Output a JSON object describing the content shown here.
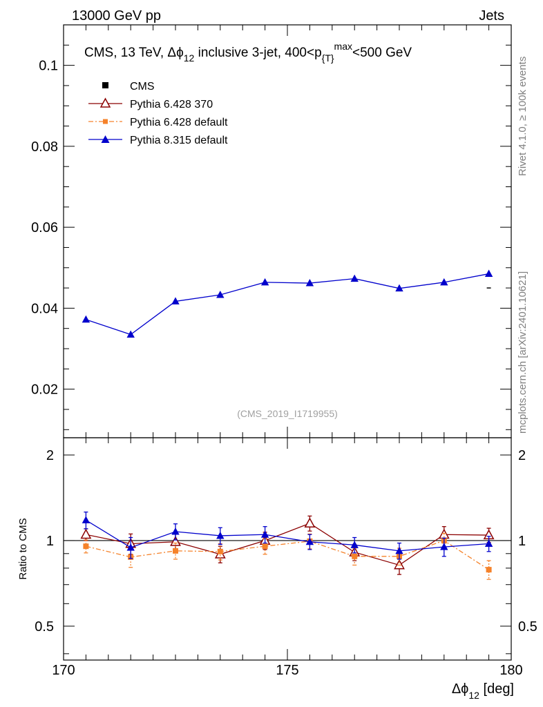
{
  "header": {
    "left": "13000 GeV pp",
    "right": "Jets"
  },
  "title": {
    "prefix": "CMS, 13 TeV, ",
    "symbol": "Δϕ",
    "symbol_sub": "12",
    "middle": " inclusive 3-jet, 400<p",
    "p_sub": "{T}",
    "p_sup": "max",
    "suffix": "<500 GeV"
  },
  "side_labels": {
    "rivet": "Rivet 4.1.0, ≥ 100k events",
    "mcplots": "mcplots.cern.ch [arXiv:2401.10621]"
  },
  "analysis_id": "(CMS_2019_I1719955)",
  "colors": {
    "cms": "#000000",
    "pythia6_370": "#8b0000",
    "pythia6_default": "#f5822a",
    "pythia8": "#0000cc"
  },
  "chart_data": {
    "type": "line",
    "main": {
      "ylim": [
        0.008,
        0.11
      ],
      "yticks": [
        0.02,
        0.04,
        0.06,
        0.08,
        0.1
      ],
      "ytick_labels": [
        "0.02",
        "0.04",
        "0.06",
        "0.08",
        "0.1"
      ]
    },
    "ratio": {
      "ylabel": "Ratio to CMS",
      "ylim": [
        0.38,
        2.3
      ],
      "log": true,
      "yticks": [
        0.5,
        1,
        2
      ],
      "ytick_labels": [
        "0.5",
        "1",
        "2"
      ]
    },
    "x": {
      "label": "Δϕ",
      "label_sub": "12",
      "label_unit": " [deg]",
      "xlim": [
        170,
        180
      ],
      "xticks": [
        170,
        175,
        180
      ],
      "xtick_labels": [
        "170",
        "175",
        "180"
      ],
      "centers": [
        170.5,
        171.5,
        172.5,
        173.5,
        174.5,
        175.5,
        176.5,
        177.5,
        178.5,
        179.5
      ]
    },
    "legend": [
      {
        "key": "cms",
        "label": "CMS",
        "marker": "square-filled",
        "line": "none"
      },
      {
        "key": "pythia6_370",
        "label": "Pythia 6.428 370",
        "marker": "triangle-open",
        "line": "solid"
      },
      {
        "key": "pythia6_default",
        "label": "Pythia 6.428 default",
        "marker": "square-filled-small",
        "line": "dashdot"
      },
      {
        "key": "pythia8",
        "label": "Pythia 8.315 default",
        "marker": "triangle-filled",
        "line": "solid"
      }
    ],
    "cms_marker": {
      "x": 179.5,
      "y": 0.045
    },
    "series_main": [
      {
        "name": "Pythia 8.315 default",
        "key": "pythia8",
        "values": [
          0.0372,
          0.0335,
          0.0417,
          0.0433,
          0.0464,
          0.0462,
          0.0473,
          0.0449,
          0.0464,
          0.0485
        ]
      }
    ],
    "series_ratio": [
      {
        "name": "Pythia 6.428 370",
        "key": "pythia6_370",
        "marker": "triangle-open",
        "dash": "",
        "values": [
          1.05,
          0.975,
          0.99,
          0.895,
          1.0,
          1.15,
          0.91,
          0.82,
          1.05,
          1.045
        ],
        "errors": [
          0.05,
          0.08,
          0.07,
          0.06,
          0.07,
          0.07,
          0.06,
          0.06,
          0.07,
          0.06
        ]
      },
      {
        "name": "Pythia 6.428 default",
        "key": "pythia6_default",
        "marker": "square",
        "dash": "7,3,2,3",
        "values": [
          0.955,
          0.875,
          0.92,
          0.915,
          0.955,
          0.995,
          0.88,
          0.88,
          1.0,
          0.79
        ],
        "errors": [
          0.05,
          0.07,
          0.06,
          0.06,
          0.06,
          0.06,
          0.06,
          0.06,
          0.06,
          0.06
        ]
      },
      {
        "name": "Pythia 8.315 default",
        "key": "pythia8",
        "marker": "triangle",
        "dash": "",
        "values": [
          1.18,
          0.945,
          1.075,
          1.04,
          1.05,
          0.99,
          0.965,
          0.92,
          0.95,
          0.975
        ],
        "errors": [
          0.08,
          0.08,
          0.07,
          0.07,
          0.07,
          0.06,
          0.06,
          0.06,
          0.07,
          0.06
        ]
      }
    ]
  }
}
